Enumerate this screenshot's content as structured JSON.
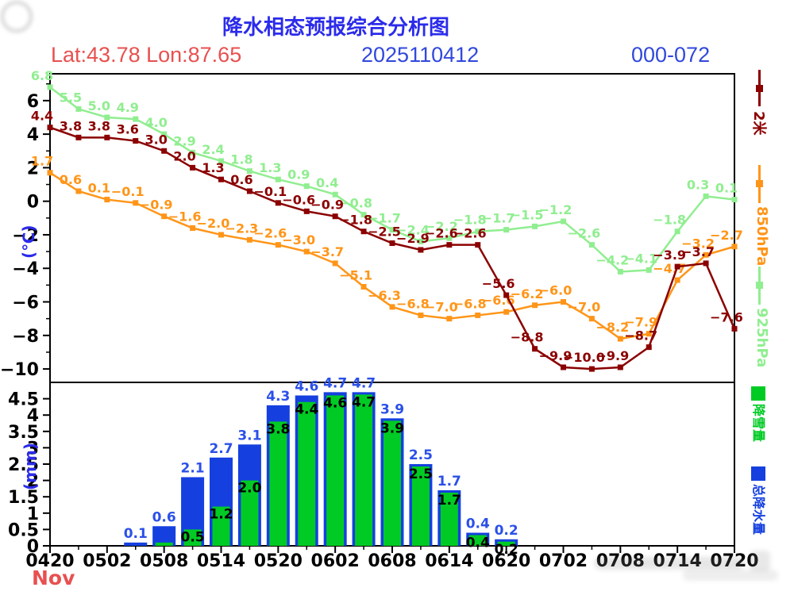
{
  "header": {
    "title": "降水相态预报综合分析图",
    "lat_lon": "Lat:43.78 Lon:87.65",
    "run_datetime": "2025110412",
    "forecast_range": "000-072"
  },
  "month_label": "Nov",
  "colors": {
    "title_blue": "#2B2BEB",
    "header_blue": "#3148DC",
    "header_red": "#E85050",
    "axis_black": "#000000",
    "dark_red_2m": "#8B0000",
    "orange_850": "#FF9518",
    "green_925": "#90EE90",
    "bar_blue": "#1540DF",
    "bar_green": "#00CB24",
    "total_label_blue": "#2B50E8",
    "snow_label_black": "#000000"
  },
  "chart_data": [
    {
      "type": "line",
      "title": "temperature curves",
      "ylabel": "(℃)",
      "ylim": [
        -10.8,
        7.6
      ],
      "yticks_major": [
        6,
        4,
        2,
        0,
        -2,
        -4,
        -6,
        -8,
        -10
      ],
      "yticks_minor": [
        7,
        5,
        3,
        1,
        -1,
        -3,
        -5,
        -7,
        -9
      ],
      "x_tick_labels": [
        "0420",
        "0502",
        "0508",
        "0514",
        "0520",
        "0602",
        "0608",
        "0614",
        "0620",
        "0702",
        "0708",
        "0714",
        "0720"
      ],
      "hours_per_point": 3,
      "grid": false,
      "legend_position": "right-vertical",
      "series": [
        {
          "name": "2米",
          "color": "#8B0000",
          "values": [
            4.4,
            3.8,
            3.8,
            3.6,
            3.0,
            2.0,
            1.3,
            0.6,
            -0.1,
            -0.6,
            -0.9,
            -1.8,
            -2.5,
            -2.9,
            -2.6,
            -2.6,
            -5.6,
            -8.8,
            -9.9,
            -10.0,
            -9.9,
            -8.7,
            -3.9,
            -3.7,
            -7.6
          ]
        },
        {
          "name": "850hPa",
          "color": "#FF9518",
          "values": [
            1.7,
            0.6,
            0.1,
            -0.1,
            -0.9,
            -1.6,
            -2.0,
            -2.3,
            -2.6,
            -3.0,
            -3.7,
            -5.1,
            -6.3,
            -6.8,
            -7.0,
            -6.8,
            -6.6,
            -6.2,
            -6.0,
            -7.0,
            -8.2,
            -7.9,
            -4.7,
            -3.2,
            -2.7
          ]
        },
        {
          "name": "925hPa",
          "color": "#90EE90",
          "values": [
            6.8,
            5.5,
            5.0,
            4.9,
            4.0,
            2.9,
            2.4,
            1.8,
            1.3,
            0.9,
            0.4,
            -0.8,
            -1.7,
            -2.4,
            -2.2,
            -1.8,
            -1.7,
            -1.5,
            -1.2,
            -2.6,
            -4.2,
            -4.1,
            -1.8,
            0.3,
            0.1
          ]
        }
      ]
    },
    {
      "type": "bar",
      "title": "precipitation bars",
      "ylabel": "(mm)",
      "ylim": [
        0,
        5.0
      ],
      "yticks_major": [
        4.5,
        4,
        3.5,
        3,
        2.5,
        2,
        1.5,
        1,
        0.5,
        0
      ],
      "start_slot": 3,
      "snow_label_min": 0.2,
      "legend_position": "right-vertical",
      "series": [
        {
          "name": "总降水量",
          "color": "#1540DF",
          "values": [
            0.1,
            0.6,
            2.1,
            2.7,
            3.1,
            4.3,
            4.6,
            4.7,
            4.7,
            3.9,
            2.5,
            1.7,
            0.4,
            0.2
          ]
        },
        {
          "name": "降雪量",
          "color": "#00CB24",
          "values": [
            0.0,
            0.1,
            0.5,
            1.2,
            2.0,
            3.8,
            4.4,
            4.6,
            4.7,
            3.9,
            2.5,
            1.7,
            0.4,
            0.2
          ]
        }
      ]
    }
  ]
}
